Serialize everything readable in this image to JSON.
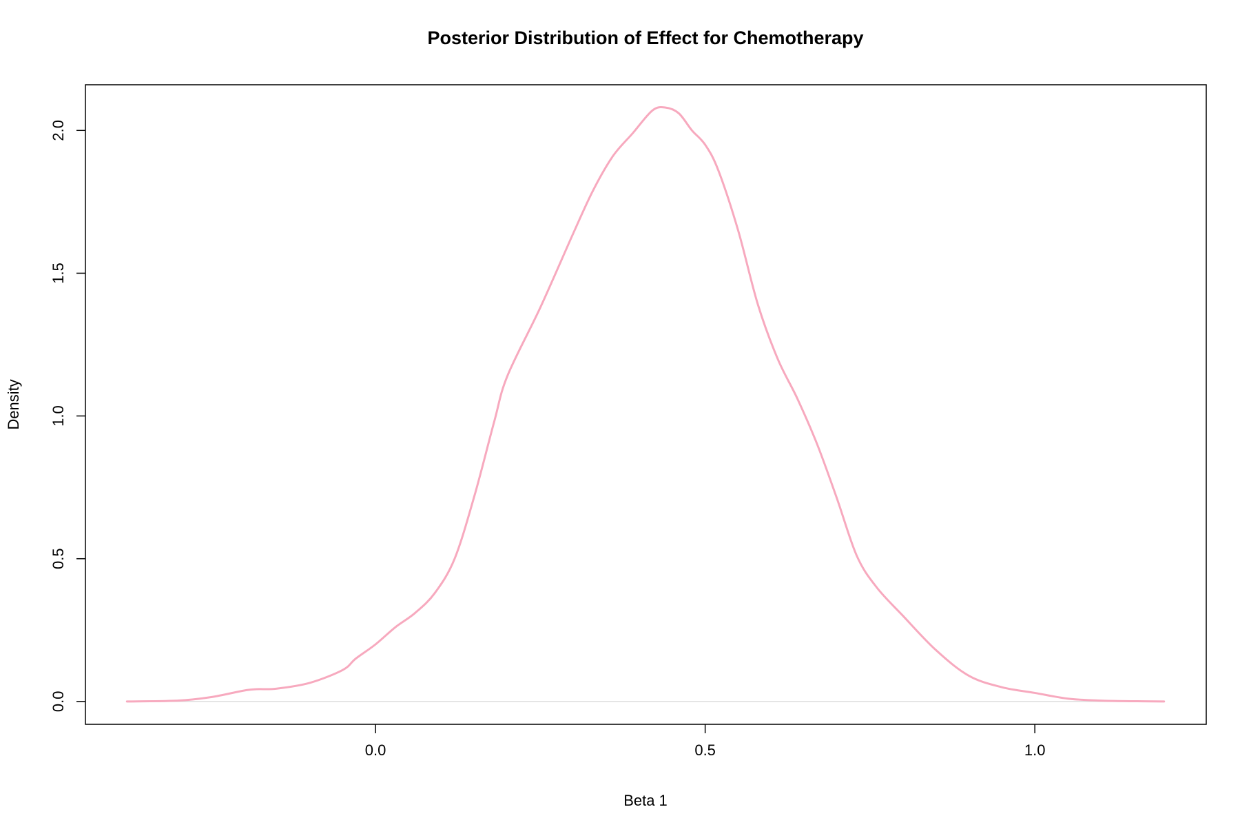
{
  "chart_data": {
    "type": "line",
    "title": "Posterior Distribution of Effect for Chemotherapy",
    "xlabel": "Beta 1",
    "ylabel": "Density",
    "xlim": [
      -0.44,
      1.26
    ],
    "ylim": [
      -0.08,
      2.16
    ],
    "x_ticks": [
      0.0,
      0.5,
      1.0
    ],
    "x_tick_labels": [
      "0.0",
      "0.5",
      "1.0"
    ],
    "y_ticks": [
      0.0,
      0.5,
      1.0,
      1.5,
      2.0
    ],
    "y_tick_labels": [
      "0.0",
      "0.5",
      "1.0",
      "1.5",
      "2.0"
    ],
    "grid": false,
    "baseline_y": 0,
    "line_color": "#F7A9BE",
    "baseline_color": "#DDDDDD",
    "series": [
      {
        "x": [
          -0.377,
          -0.3,
          -0.25,
          -0.2,
          -0.18,
          -0.15,
          -0.1,
          -0.05,
          -0.03,
          0.0,
          0.03,
          0.06,
          0.09,
          0.12,
          0.15,
          0.18,
          0.2,
          0.25,
          0.3,
          0.33,
          0.36,
          0.39,
          0.42,
          0.44,
          0.46,
          0.48,
          0.5,
          0.52,
          0.55,
          0.58,
          0.61,
          0.64,
          0.67,
          0.7,
          0.73,
          0.76,
          0.8,
          0.85,
          0.9,
          0.95,
          1.0,
          1.05,
          1.1,
          1.15,
          1.196
        ],
        "y": [
          0.0,
          0.003,
          0.015,
          0.038,
          0.043,
          0.045,
          0.065,
          0.11,
          0.15,
          0.2,
          0.26,
          0.31,
          0.38,
          0.5,
          0.72,
          0.98,
          1.14,
          1.38,
          1.64,
          1.79,
          1.91,
          1.99,
          2.07,
          2.08,
          2.06,
          2.0,
          1.95,
          1.86,
          1.65,
          1.39,
          1.2,
          1.06,
          0.9,
          0.71,
          0.51,
          0.4,
          0.3,
          0.18,
          0.09,
          0.05,
          0.03,
          0.01,
          0.003,
          0.001,
          0.0
        ]
      }
    ]
  }
}
